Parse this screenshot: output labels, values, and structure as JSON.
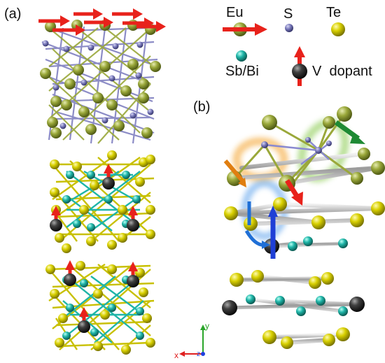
{
  "panels": {
    "a": "(a)",
    "b": "(b)"
  },
  "legend": {
    "eu": "Eu",
    "s": "S",
    "te": "Te",
    "sb_bi": "Sb/Bi",
    "v_dopant": "V  dopant"
  },
  "axes": {
    "x": "x",
    "y": "y",
    "z": "z"
  },
  "colors": {
    "eu": "#9aa83a",
    "s": "#7676b8",
    "te": "#d8d000",
    "sbbi": "#1fb5a8",
    "v": "#2e2e2e",
    "spin_arrow": "#e8221b",
    "green_arrow": "#1e8a34",
    "blue_arrow": "#1f3fd6",
    "orange_glow": "#f39a16",
    "green_glow": "#7cc43a",
    "blue_glow": "#3b8fe8"
  }
}
